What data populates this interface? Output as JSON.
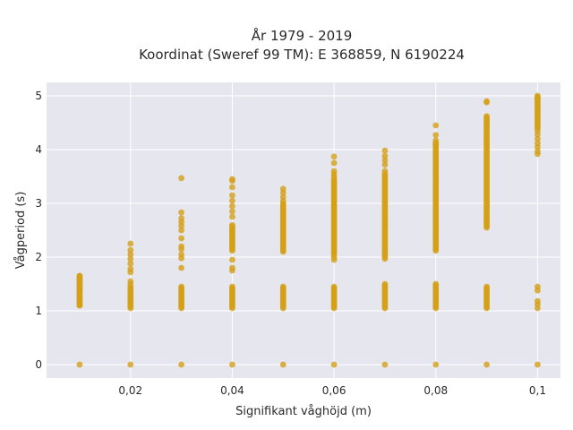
{
  "chart_data": {
    "type": "scatter",
    "title": "År 1979 - 2019",
    "subtitle": "Koordinat (Sweref 99 TM): E 368859, N 6190224",
    "xlabel": "Signifikant våghöjd (m)",
    "ylabel": "Vågperiod (s)",
    "xlim": [
      0.0035,
      0.1045
    ],
    "ylim": [
      -0.25,
      5.25
    ],
    "xticks": [
      0.02,
      0.04,
      0.06,
      0.08,
      0.1
    ],
    "xtick_labels": [
      "0,02",
      "0,04",
      "0,06",
      "0,08",
      "0,1"
    ],
    "yticks": [
      0,
      1,
      2,
      3,
      4,
      5
    ],
    "ytick_labels": [
      "0",
      "1",
      "2",
      "3",
      "4",
      "5"
    ],
    "grid": true,
    "legend": "none",
    "colors": {
      "marker": "#d4a017",
      "plot_background": "#e6e6ef",
      "grid": "#ffffff"
    },
    "series": [
      {
        "clusters": [
          {
            "x": 0.01,
            "y_values": [
              0
            ],
            "ranges": [
              [
                1.1,
                1.65
              ]
            ],
            "points": [
              1.1,
              1.15,
              1.22,
              1.3,
              1.38,
              1.42,
              1.48,
              1.5,
              1.55,
              1.6,
              1.65
            ]
          },
          {
            "x": 0.02,
            "y_values": [
              0
            ],
            "ranges": [
              [
                1.05,
                1.45
              ]
            ],
            "points": [
              1.5,
              1.55,
              1.72,
              1.78,
              1.88,
              1.97,
              2.05,
              2.13,
              2.25
            ]
          },
          {
            "x": 0.03,
            "y_values": [
              0
            ],
            "ranges": [
              [
                1.05,
                1.45
              ]
            ],
            "points": [
              1.8,
              1.98,
              2.05,
              2.15,
              2.2,
              2.35,
              2.5,
              2.58,
              2.65,
              2.72,
              2.83,
              3.47
            ]
          },
          {
            "x": 0.04,
            "y_values": [
              0
            ],
            "ranges": [
              [
                1.05,
                1.45
              ],
              [
                2.12,
                2.6
              ]
            ],
            "points": [
              1.75,
              1.8,
              1.95,
              2.75,
              2.85,
              2.95,
              3.05,
              3.15,
              3.3,
              3.42,
              3.45
            ]
          },
          {
            "x": 0.05,
            "y_values": [
              0
            ],
            "ranges": [
              [
                1.05,
                1.45
              ],
              [
                2.1,
                3.0
              ]
            ],
            "points": [
              3.05,
              3.12,
              3.2,
              3.27
            ]
          },
          {
            "x": 0.06,
            "y_values": [
              0
            ],
            "ranges": [
              [
                1.05,
                1.45
              ],
              [
                2.05,
                3.45
              ]
            ],
            "points": [
              1.95,
              2.0,
              3.5,
              3.55,
              3.6,
              3.75,
              3.87
            ]
          },
          {
            "x": 0.07,
            "y_values": [
              0
            ],
            "ranges": [
              [
                1.05,
                1.5
              ],
              [
                2.0,
                3.55
              ]
            ],
            "points": [
              1.97,
              3.6,
              3.72,
              3.8,
              3.88,
              3.98
            ]
          },
          {
            "x": 0.08,
            "y_values": [
              0
            ],
            "ranges": [
              [
                1.05,
                1.52
              ],
              [
                2.12,
                4.12
              ]
            ],
            "points": [
              4.12,
              4.17,
              4.27,
              4.45
            ]
          },
          {
            "x": 0.09,
            "y_values": [
              0
            ],
            "ranges": [
              [
                1.05,
                1.45
              ],
              [
                2.55,
                4.6
              ]
            ],
            "points": [
              4.62,
              4.88,
              4.9
            ]
          },
          {
            "x": 0.1,
            "y_values": [
              0
            ],
            "ranges": [
              [
                4.4,
                5.0
              ]
            ],
            "points": [
              1.05,
              1.12,
              1.18,
              1.38,
              1.45,
              3.92,
              3.97,
              4.05,
              4.12,
              4.2,
              4.28,
              4.35,
              4.92,
              4.97
            ]
          }
        ]
      }
    ]
  }
}
